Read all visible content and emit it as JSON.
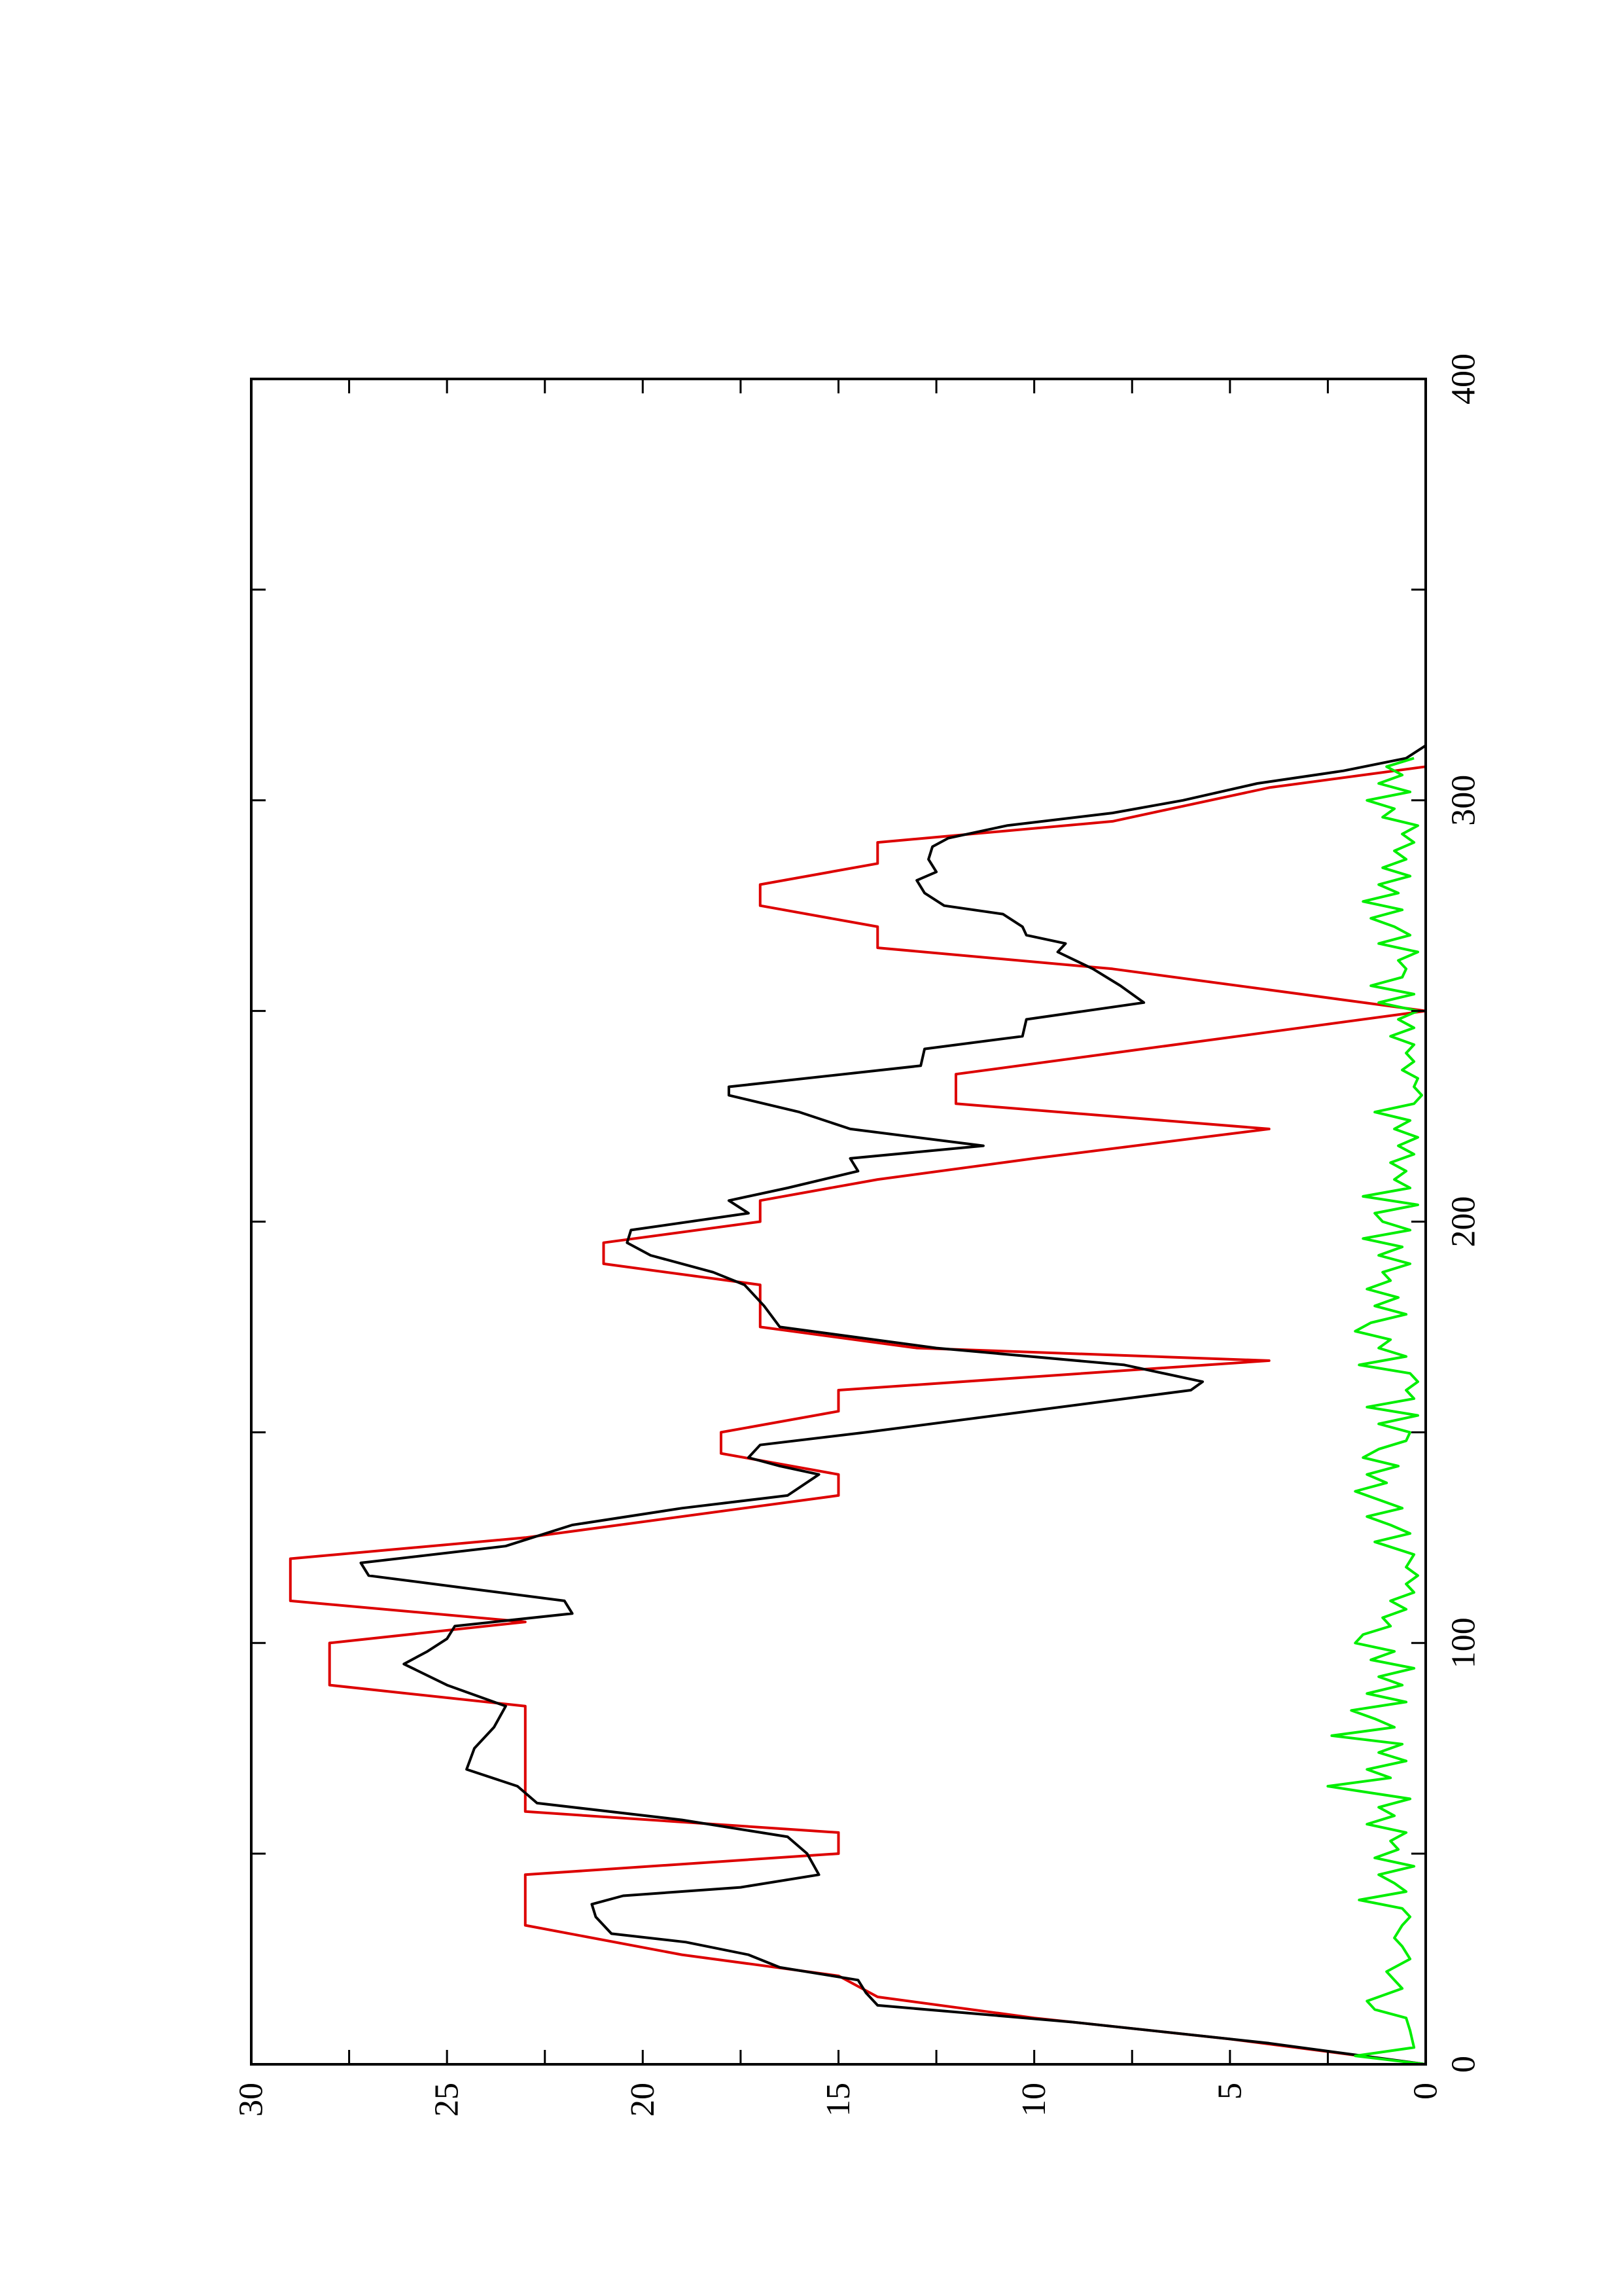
{
  "chart_data": {
    "type": "line",
    "orientation": "rotated-90-ccw",
    "title": "",
    "xlabel": "",
    "ylabel": "",
    "xlim": [
      0,
      400
    ],
    "ylim": [
      0,
      30
    ],
    "x_ticks": [
      0,
      100,
      200,
      300,
      400
    ],
    "x_tick_labels": [
      "0",
      "100",
      "200",
      "300",
      "400"
    ],
    "y_ticks": [
      0,
      5,
      10,
      15,
      20,
      25,
      30
    ],
    "y_tick_labels": [
      "0",
      "5",
      "10",
      "15",
      "20",
      "25",
      "30"
    ],
    "grid": false,
    "legend": "none",
    "series": [
      {
        "color": "#dd0000",
        "style": "step-ramp",
        "points": [
          [
            0,
            0
          ],
          [
            6,
            5
          ],
          [
            11,
            10
          ],
          [
            16,
            14
          ],
          [
            21,
            15
          ],
          [
            26,
            19
          ],
          [
            33,
            23
          ],
          [
            45,
            23
          ],
          [
            50,
            15
          ],
          [
            55,
            15
          ],
          [
            60,
            23
          ],
          [
            85,
            23
          ],
          [
            90,
            28
          ],
          [
            100,
            28
          ],
          [
            105,
            23
          ],
          [
            110,
            29
          ],
          [
            120,
            29
          ],
          [
            125,
            23
          ],
          [
            135,
            15
          ],
          [
            140,
            15
          ],
          [
            145,
            18
          ],
          [
            150,
            18
          ],
          [
            155,
            15
          ],
          [
            160,
            15
          ],
          [
            167,
            4
          ],
          [
            170,
            13
          ],
          [
            175,
            17
          ],
          [
            185,
            17
          ],
          [
            190,
            21
          ],
          [
            195,
            21
          ],
          [
            200,
            17
          ],
          [
            205,
            17
          ],
          [
            210,
            14
          ],
          [
            215,
            10
          ],
          [
            222,
            4
          ],
          [
            228,
            12
          ],
          [
            235,
            12
          ],
          [
            240,
            8
          ],
          [
            245,
            4
          ],
          [
            250,
            0
          ],
          [
            255,
            4
          ],
          [
            260,
            8
          ],
          [
            265,
            14
          ],
          [
            270,
            14
          ],
          [
            275,
            17
          ],
          [
            280,
            17
          ],
          [
            285,
            14
          ],
          [
            290,
            14
          ],
          [
            295,
            8
          ],
          [
            303,
            4
          ],
          [
            308,
            0
          ]
        ]
      },
      {
        "color": "#000000",
        "style": "line",
        "points": [
          [
            0,
            0
          ],
          [
            5,
            4
          ],
          [
            10,
            9
          ],
          [
            14,
            14
          ],
          [
            17,
            14.3
          ],
          [
            20,
            14.5
          ],
          [
            23,
            16.5
          ],
          [
            26,
            17.3
          ],
          [
            29,
            18.9
          ],
          [
            31,
            20.8
          ],
          [
            35,
            21.2
          ],
          [
            38,
            21.3
          ],
          [
            40,
            20.5
          ],
          [
            42,
            17.5
          ],
          [
            45,
            15.5
          ],
          [
            50,
            15.8
          ],
          [
            54,
            16.3
          ],
          [
            58,
            19
          ],
          [
            62,
            22.7
          ],
          [
            66,
            23.2
          ],
          [
            70,
            24.5
          ],
          [
            75,
            24.3
          ],
          [
            80,
            23.8
          ],
          [
            85,
            23.5
          ],
          [
            90,
            25
          ],
          [
            95,
            26.1
          ],
          [
            98,
            25.5
          ],
          [
            101,
            25
          ],
          [
            104,
            24.8
          ],
          [
            107,
            21.8
          ],
          [
            110,
            22
          ],
          [
            113,
            24.5
          ],
          [
            116,
            27
          ],
          [
            119,
            27.2
          ],
          [
            123,
            23.5
          ],
          [
            128,
            21.8
          ],
          [
            132,
            19
          ],
          [
            135,
            16.3
          ],
          [
            140,
            15.5
          ],
          [
            142,
            16.5
          ],
          [
            144,
            17.3
          ],
          [
            147,
            17
          ],
          [
            150,
            14.3
          ],
          [
            160,
            6
          ],
          [
            162,
            5.7
          ],
          [
            166,
            7.7
          ],
          [
            170,
            12.5
          ],
          [
            175,
            16.5
          ],
          [
            180,
            16.9
          ],
          [
            185,
            17.4
          ],
          [
            188,
            18.2
          ],
          [
            192,
            19.8
          ],
          [
            195,
            20.4
          ],
          [
            198,
            20.3
          ],
          [
            202,
            17.3
          ],
          [
            205,
            17.8
          ],
          [
            208,
            16.3
          ],
          [
            212,
            14.5
          ],
          [
            215,
            14.7
          ],
          [
            218,
            11.3
          ],
          [
            222,
            14.7
          ],
          [
            226,
            16
          ],
          [
            230,
            17.8
          ],
          [
            232,
            17.8
          ],
          [
            237,
            12.9
          ],
          [
            241,
            12.8
          ],
          [
            244,
            10.3
          ],
          [
            248,
            10.2
          ],
          [
            252,
            7.2
          ],
          [
            256,
            7.8
          ],
          [
            260,
            8.5
          ],
          [
            264,
            9.4
          ],
          [
            266,
            9.2
          ],
          [
            268,
            10.2
          ],
          [
            270,
            10.3
          ],
          [
            273,
            10.8
          ],
          [
            275,
            12.3
          ],
          [
            278,
            12.8
          ],
          [
            281,
            13
          ],
          [
            283,
            12.5
          ],
          [
            286,
            12.7
          ],
          [
            289,
            12.6
          ],
          [
            291,
            12.2
          ],
          [
            294,
            10.7
          ],
          [
            297,
            8
          ],
          [
            300,
            6.2
          ],
          [
            304,
            4.3
          ],
          [
            307,
            2.1
          ],
          [
            310,
            0.5
          ],
          [
            313,
            0
          ]
        ]
      },
      {
        "color": "#00ee00",
        "style": "line",
        "points": [
          [
            0,
            0
          ],
          [
            2,
            1.8
          ],
          [
            4,
            0.3
          ],
          [
            8,
            0.4
          ],
          [
            11,
            0.5
          ],
          [
            13,
            1.3
          ],
          [
            15,
            1.5
          ],
          [
            18,
            0.6
          ],
          [
            20,
            0.8
          ],
          [
            22,
            1
          ],
          [
            25,
            0.4
          ],
          [
            28,
            0.6
          ],
          [
            30,
            0.8
          ],
          [
            33,
            0.6
          ],
          [
            35,
            0.4
          ],
          [
            37,
            0.6
          ],
          [
            39,
            1.7
          ],
          [
            41,
            0.5
          ],
          [
            43,
            0.8
          ],
          [
            45,
            1.2
          ],
          [
            47,
            0.3
          ],
          [
            49,
            1.3
          ],
          [
            51,
            0.7
          ],
          [
            53,
            0.9
          ],
          [
            55,
            0.5
          ],
          [
            57,
            1.5
          ],
          [
            59,
            0.8
          ],
          [
            61,
            1.2
          ],
          [
            63,
            0.4
          ],
          [
            65,
            1.8
          ],
          [
            66,
            2.5
          ],
          [
            68,
            0.9
          ],
          [
            70,
            1.5
          ],
          [
            72,
            0.5
          ],
          [
            74,
            1.2
          ],
          [
            76,
            0.6
          ],
          [
            78,
            2.4
          ],
          [
            80,
            0.8
          ],
          [
            82,
            1.3
          ],
          [
            84,
            1.9
          ],
          [
            86,
            0.5
          ],
          [
            88,
            1.5
          ],
          [
            90,
            0.6
          ],
          [
            92,
            1.2
          ],
          [
            94,
            0.3
          ],
          [
            96,
            1.4
          ],
          [
            98,
            0.8
          ],
          [
            100,
            1.8
          ],
          [
            102,
            1.6
          ],
          [
            104,
            0.9
          ],
          [
            106,
            1.1
          ],
          [
            108,
            0.5
          ],
          [
            110,
            0.9
          ],
          [
            112,
            0.3
          ],
          [
            114,
            0.5
          ],
          [
            116,
            0.2
          ],
          [
            118,
            0.5
          ],
          [
            121,
            0.3
          ],
          [
            124,
            1.3
          ],
          [
            126,
            0.4
          ],
          [
            128,
            0.9
          ],
          [
            130,
            1.5
          ],
          [
            132,
            0.6
          ],
          [
            134,
            1.2
          ],
          [
            136,
            1.8
          ],
          [
            138,
            1
          ],
          [
            140,
            1.5
          ],
          [
            142,
            0.7
          ],
          [
            144,
            1.6
          ],
          [
            146,
            1.2
          ],
          [
            148,
            0.5
          ],
          [
            150,
            0.4
          ],
          [
            152,
            1.2
          ],
          [
            154,
            0.2
          ],
          [
            156,
            1.5
          ],
          [
            158,
            0.3
          ],
          [
            160,
            0.5
          ],
          [
            162,
            0.2
          ],
          [
            164,
            0.4
          ],
          [
            166,
            1.7
          ],
          [
            168,
            0.5
          ],
          [
            170,
            1.2
          ],
          [
            172,
            0.9
          ],
          [
            174,
            1.8
          ],
          [
            176,
            1.4
          ],
          [
            178,
            0.5
          ],
          [
            180,
            1.3
          ],
          [
            182,
            0.7
          ],
          [
            184,
            1.5
          ],
          [
            186,
            0.9
          ],
          [
            188,
            1.1
          ],
          [
            190,
            0.4
          ],
          [
            192,
            1.2
          ],
          [
            194,
            0.6
          ],
          [
            196,
            1.6
          ],
          [
            198,
            0.4
          ],
          [
            200,
            1.1
          ],
          [
            202,
            1.3
          ],
          [
            204,
            0.2
          ],
          [
            206,
            1.6
          ],
          [
            208,
            0.4
          ],
          [
            210,
            0.8
          ],
          [
            212,
            0.5
          ],
          [
            214,
            0.9
          ],
          [
            216,
            0.3
          ],
          [
            218,
            0.7
          ],
          [
            220,
            0.2
          ],
          [
            222,
            0.8
          ],
          [
            224,
            0.4
          ],
          [
            226,
            1.3
          ],
          [
            228,
            0.3
          ],
          [
            230,
            0.1
          ],
          [
            232,
            0.3
          ],
          [
            234,
            0.2
          ],
          [
            236,
            0.6
          ],
          [
            238,
            0.3
          ],
          [
            240,
            0.5
          ],
          [
            242,
            0.3
          ],
          [
            244,
            0.9
          ],
          [
            246,
            0.3
          ],
          [
            248,
            0.7
          ],
          [
            250,
            0.2
          ],
          [
            252,
            1.2
          ],
          [
            254,
            0.3
          ],
          [
            256,
            1.4
          ],
          [
            258,
            0.6
          ],
          [
            260,
            0.5
          ],
          [
            262,
            0.7
          ],
          [
            264,
            0.2
          ],
          [
            266,
            1.2
          ],
          [
            268,
            0.4
          ],
          [
            270,
            0.8
          ],
          [
            272,
            1.4
          ],
          [
            274,
            0.6
          ],
          [
            276,
            1.6
          ],
          [
            278,
            0.7
          ],
          [
            280,
            1.2
          ],
          [
            282,
            0.4
          ],
          [
            284,
            1.1
          ],
          [
            286,
            0.5
          ],
          [
            288,
            0.8
          ],
          [
            290,
            0.3
          ],
          [
            292,
            0.6
          ],
          [
            294,
            0.2
          ],
          [
            296,
            1.1
          ],
          [
            298,
            0.8
          ],
          [
            300,
            1.5
          ],
          [
            302,
            0.4
          ],
          [
            304,
            1.2
          ],
          [
            306,
            0.6
          ],
          [
            308,
            1
          ],
          [
            310,
            0.3
          ]
        ]
      }
    ]
  }
}
